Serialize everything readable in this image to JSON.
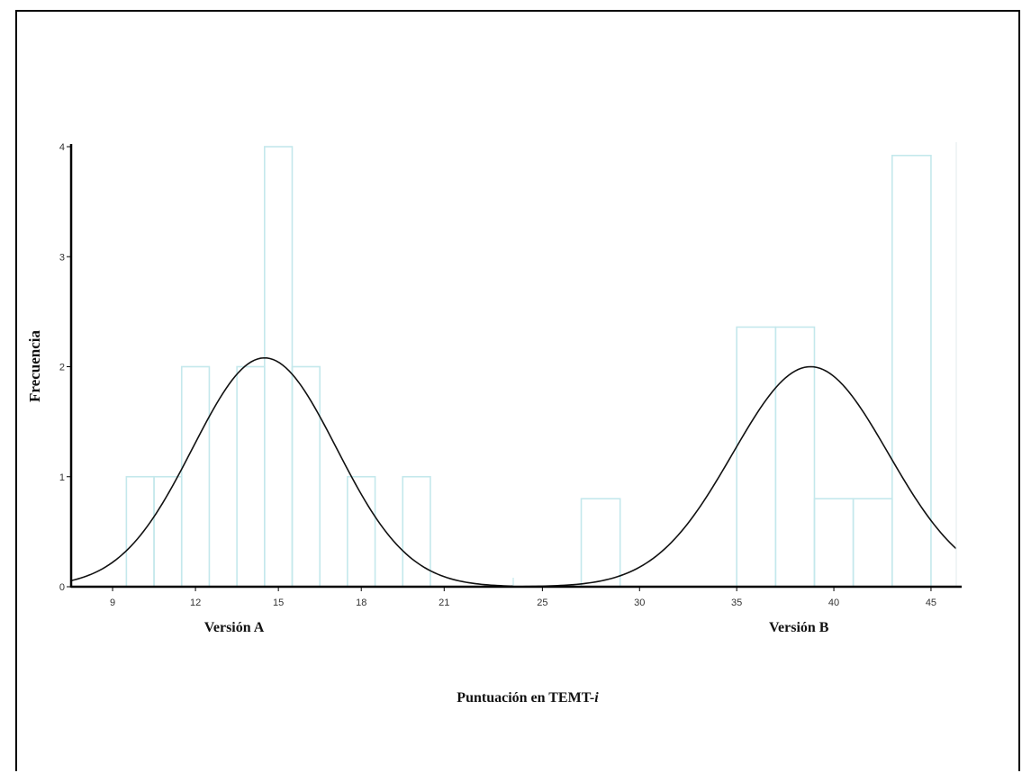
{
  "chart_data": {
    "type": "bar",
    "xlabel": "Puntuación en TEMT-",
    "xlabel_italic": "i",
    "ylabel": "Frecuencia",
    "group_labels": [
      "Versión A",
      "Versión B"
    ],
    "ylim": [
      0,
      4
    ],
    "y_ticks": [
      "0",
      "1",
      "2",
      "3",
      "4"
    ],
    "grid": false,
    "bar_color": "#c4e8ec",
    "curve_color": "#111111",
    "panels": [
      {
        "name": "Versión A",
        "xlim": [
          7.5,
          23.5
        ],
        "x_ticks": [
          9,
          12,
          15,
          18,
          21
        ],
        "bin_width": 1,
        "bins": [
          {
            "x": 10,
            "count": 1
          },
          {
            "x": 11,
            "count": 1
          },
          {
            "x": 12,
            "count": 2
          },
          {
            "x": 14,
            "count": 2
          },
          {
            "x": 15,
            "count": 4
          },
          {
            "x": 16,
            "count": 2
          },
          {
            "x": 18,
            "count": 1
          },
          {
            "x": 20,
            "count": 1
          }
        ],
        "normal_curve": {
          "mean": 14.5,
          "sd": 2.6,
          "peak": 2.08
        }
      },
      {
        "name": "Versión B",
        "xlim": [
          23.5,
          46.3
        ],
        "x_ticks": [
          25,
          30,
          35,
          40,
          45
        ],
        "bin_width": 2,
        "bins": [
          {
            "x": 28,
            "count": 0.8
          },
          {
            "x": 36,
            "count": 2.36
          },
          {
            "x": 38,
            "count": 2.36
          },
          {
            "x": 40,
            "count": 0.8
          },
          {
            "x": 42,
            "count": 0.8
          },
          {
            "x": 44,
            "count": 3.92
          }
        ],
        "normal_curve": {
          "mean": 38.8,
          "sd": 4.0,
          "peak": 2.0
        }
      }
    ]
  }
}
